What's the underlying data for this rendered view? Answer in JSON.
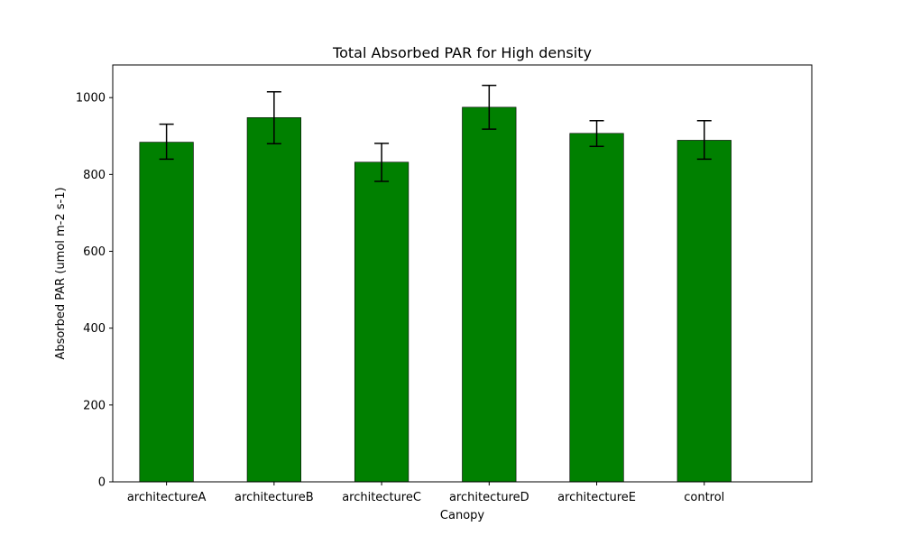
{
  "chart_data": {
    "type": "bar",
    "title": "Total Absorbed PAR for High density",
    "xlabel": "Canopy",
    "ylabel": "Absorbed PAR (umol m-2 s-1)",
    "categories": [
      "architectureA",
      "architectureB",
      "architectureC",
      "architectureD",
      "architectureE",
      "control"
    ],
    "values": [
      884,
      948,
      832,
      975,
      907,
      889
    ],
    "error_low": [
      840,
      880,
      782,
      918,
      873,
      840
    ],
    "error_high": [
      931,
      1015,
      881,
      1032,
      940,
      940
    ],
    "ylim": [
      0,
      1085
    ],
    "yticks": [
      0,
      200,
      400,
      600,
      800,
      1000
    ],
    "grid": false,
    "bar_color": "#008000",
    "bar_edge_color": "#000000",
    "error_color": "#000000"
  }
}
